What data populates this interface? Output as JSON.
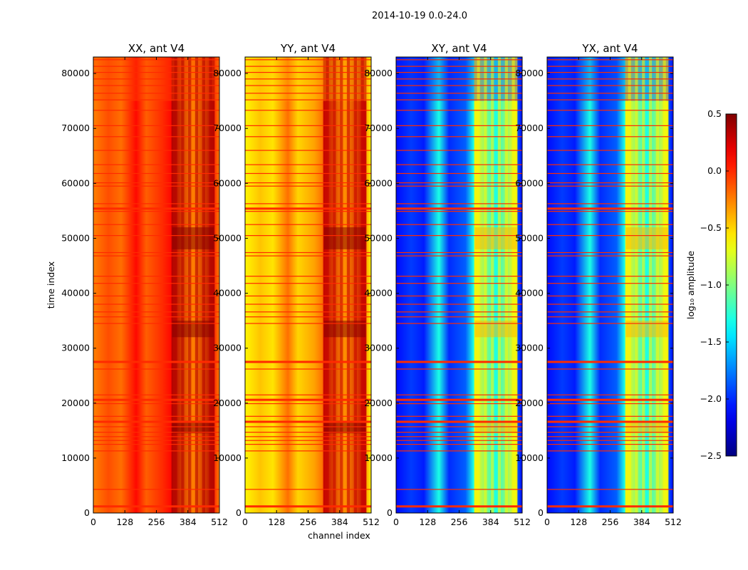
{
  "chart_data": {
    "type": "heatmap",
    "suptitle": "2014-10-19 0.0-24.0",
    "xlabel": "channel index",
    "ylabel": "time index",
    "xlim": [
      0,
      512
    ],
    "ylim": [
      0,
      83000
    ],
    "xticks": [
      "0",
      "128",
      "256",
      "384",
      "512"
    ],
    "yticks": [
      "0",
      "10000",
      "20000",
      "30000",
      "40000",
      "50000",
      "60000",
      "70000",
      "80000"
    ],
    "colorbar": {
      "label": "log₁₀ amplitude",
      "range": [
        -2.5,
        0.5
      ],
      "ticks": [
        "0.5",
        "0.0",
        "−0.5",
        "−1.0",
        "−1.5",
        "−2.0",
        "−2.5"
      ],
      "colormap": "jet"
    },
    "panels": [
      {
        "title": "XX, ant V4",
        "base": -0.25,
        "center": 0.1,
        "overlay_high": 0.35,
        "overlay_low": -0.25,
        "upper_base": -0.1
      },
      {
        "title": "YY, ant V4",
        "base": -0.6,
        "center": -0.2,
        "overlay_high": 0.3,
        "overlay_low": -0.3,
        "upper_base": -0.45
      },
      {
        "title": "XY, ant V4",
        "base": -2.1,
        "center": -1.3,
        "overlay_high": -0.6,
        "overlay_low": -1.3,
        "upper_base": -2.0
      },
      {
        "title": "YX, ant V4",
        "base": -2.1,
        "center": -1.3,
        "overlay_high": -0.6,
        "overlay_low": -1.3,
        "upper_base": -2.0
      }
    ],
    "flagged_time_rows": [
      1200,
      4300,
      11300,
      12500,
      13200,
      13900,
      14700,
      15700,
      16600,
      17600,
      19900,
      20600,
      21500,
      26200,
      27500,
      34500,
      35700,
      36600,
      38000,
      39500,
      41800,
      43100,
      46800,
      47400,
      50500,
      52500,
      54900,
      55400,
      56300,
      59500,
      60100,
      61800,
      63400,
      66000,
      68500,
      70500,
      73300,
      75200,
      76400,
      77800,
      79000,
      80200,
      81300,
      82500
    ],
    "flag_value": 0.0,
    "rfi_band_channels": [
      320,
      490
    ]
  }
}
